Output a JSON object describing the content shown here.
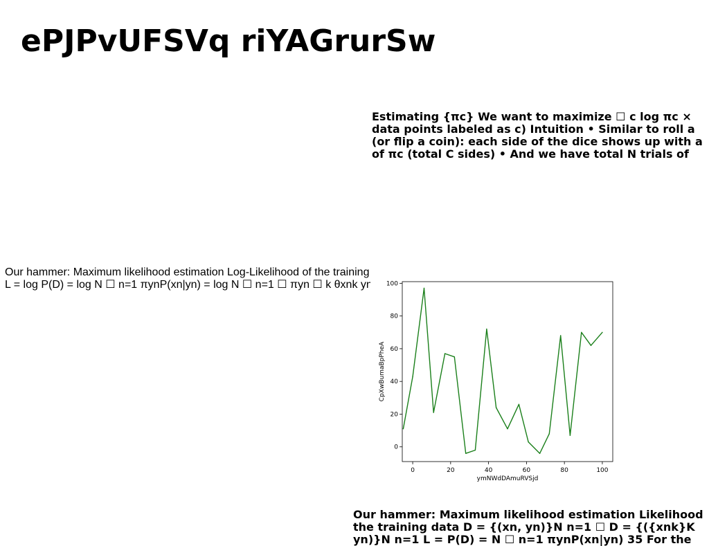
{
  "title": "ePJPvUFSVq riYAGrurSw",
  "text_block_top_right": [
    "Estimating {πc} We want to maximize ☐ c log πc ×",
    "data points labeled as c) Intuition • Similar to roll a",
    "(or flip a coin): each side of the dice shows up with a",
    "of πc (total C sides) • And we have total N trials of"
  ],
  "text_block_left": [
    "Our hammer: Maximum likelihood estimation Log-Likelihood of the training",
    "L = log P(D) = log N ☐ n=1 πynP(xn|yn) = log N ☐ n=1 ☐ πyn ☐ k θxnk ynk"
  ],
  "text_block_bottom_right": [
    "Our hammer: Maximum likelihood estimation Likelihood",
    "the training data D = {(xn, yn)}N n=1 ☐ D = {({xnk}K",
    "yn)}N n=1 L = P(D) = N ☐ n=1 πynP(xn|yn) 35 For the"
  ],
  "chart_data": {
    "type": "line",
    "xlabel": "ymNWdDAmuRVSjd",
    "ylabel": "CpXwBumaBpPheA",
    "xlim": [
      -5.5,
      105.5
    ],
    "ylim": [
      -9,
      101
    ],
    "xticks": [
      0,
      20,
      40,
      60,
      80,
      100
    ],
    "yticks": [
      0,
      20,
      40,
      60,
      80,
      100
    ],
    "grid": false,
    "line_color": "#1a7f1a",
    "x": [
      -5,
      0,
      6,
      11,
      17,
      22,
      28,
      33,
      39,
      44,
      50,
      56,
      61,
      67,
      72,
      78,
      83,
      89,
      94,
      100
    ],
    "y": [
      11,
      43,
      97,
      21,
      57,
      55,
      -4,
      -2,
      72,
      24,
      11,
      26,
      3,
      -4,
      8,
      68,
      7,
      70,
      62,
      70
    ]
  }
}
